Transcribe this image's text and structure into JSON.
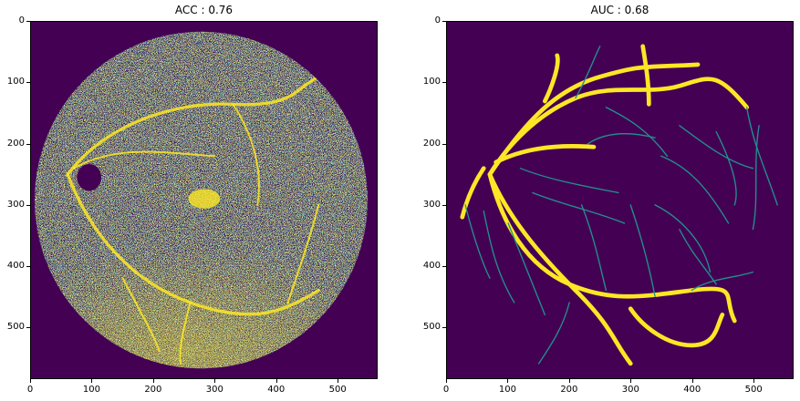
{
  "panels": [
    {
      "title": "ACC : 0.76",
      "xticks": [
        "0",
        "100",
        "200",
        "300",
        "400",
        "500"
      ],
      "yticks": [
        "0",
        "100",
        "200",
        "300",
        "400",
        "500"
      ],
      "xtick_values": [
        0,
        100,
        200,
        300,
        400,
        500
      ],
      "ytick_values": [
        0,
        100,
        200,
        300,
        400,
        500
      ],
      "xlim": [
        0,
        565
      ],
      "ylim": [
        584,
        0
      ],
      "image": "predicted-vessel-map"
    },
    {
      "title": "AUC : 0.68",
      "xticks": [
        "0",
        "100",
        "200",
        "300",
        "400",
        "500"
      ],
      "yticks": [
        "0",
        "100",
        "200",
        "300",
        "400",
        "500"
      ],
      "xtick_values": [
        0,
        100,
        200,
        300,
        400,
        500
      ],
      "ytick_values": [
        0,
        100,
        200,
        300,
        400,
        500
      ],
      "xlim": [
        0,
        565
      ],
      "ylim": [
        584,
        0
      ],
      "image": "ground-truth-vessel-map"
    }
  ],
  "colors": {
    "background": "#440154",
    "vessel": "#fde725",
    "mid": "#21918c",
    "dark_mid": "#3b528b"
  }
}
